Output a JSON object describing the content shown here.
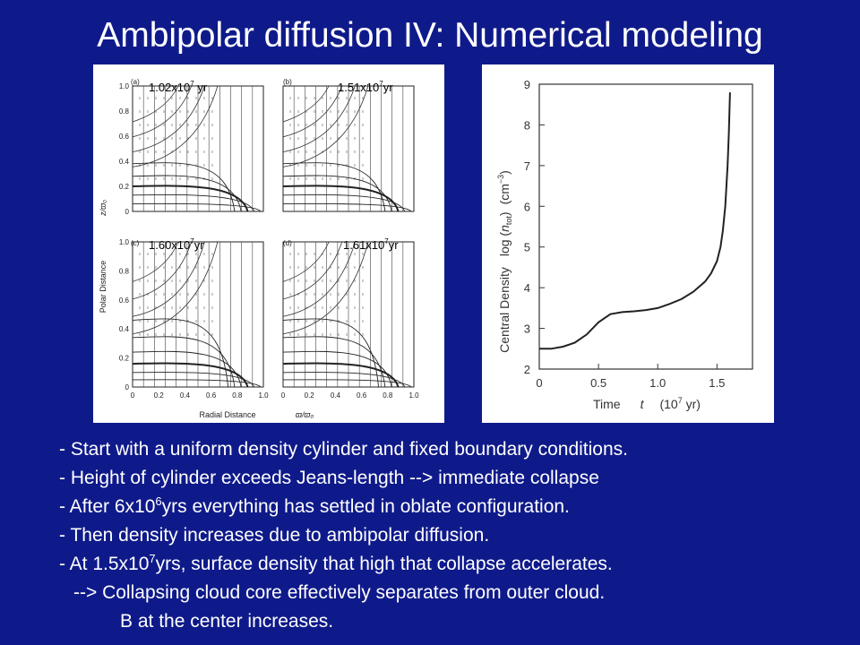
{
  "slide": {
    "title": "Ambipolar diffusion IV: Numerical modeling"
  },
  "left_figure": {
    "ylabel_main": "Polar Distance",
    "ylabel_unit": "z/ϖ₀",
    "xlabel_main": "Radial Distance",
    "xlabel_unit": "ϖ/ϖ₀",
    "x_ticks": [
      "0",
      "0.2",
      "0.4",
      "0.6",
      "0.8",
      "1.0"
    ],
    "y_ticks": [
      "0",
      "0.2",
      "0.4",
      "0.6",
      "0.8",
      "1.0"
    ],
    "panels": [
      {
        "letter": "(a)",
        "time_mantissa": "1.02x10",
        "time_exp": "7",
        "time_unit": " yr"
      },
      {
        "letter": "(b)",
        "time_mantissa": "1.51x10",
        "time_exp": "7",
        "time_unit": "yr"
      },
      {
        "letter": "(c)",
        "time_mantissa": "1.60x10",
        "time_exp": "7",
        "time_unit": "yr"
      },
      {
        "letter": "(d)",
        "time_mantissa": "1.61x10",
        "time_exp": "7",
        "time_unit": "yr"
      }
    ]
  },
  "chart_data": {
    "type": "line",
    "xlabel": "Time   t   (10⁷ yr)",
    "ylabel": "Central Density   log (n_tot)  (cm⁻³)",
    "xlim": [
      0,
      1.8
    ],
    "ylim": [
      2,
      9
    ],
    "x_ticks": [
      "0",
      "0.5",
      "1.0",
      "1.5"
    ],
    "x_tick_values": [
      0,
      0.5,
      1.0,
      1.5
    ],
    "y_ticks": [
      "2",
      "3",
      "4",
      "5",
      "6",
      "7",
      "8",
      "9"
    ],
    "y_tick_values": [
      2,
      3,
      4,
      5,
      6,
      7,
      8,
      9
    ],
    "series": [
      {
        "x": [
          0,
          0.1,
          0.2,
          0.3,
          0.4,
          0.5,
          0.6,
          0.7,
          0.8,
          0.9,
          1.0,
          1.1,
          1.2,
          1.3,
          1.4,
          1.45,
          1.5,
          1.53,
          1.55,
          1.57,
          1.59,
          1.6,
          1.61
        ],
        "y": [
          2.5,
          2.5,
          2.55,
          2.65,
          2.85,
          3.15,
          3.35,
          3.4,
          3.42,
          3.45,
          3.5,
          3.6,
          3.72,
          3.9,
          4.15,
          4.35,
          4.65,
          5.0,
          5.4,
          6.0,
          7.0,
          7.8,
          8.8
        ]
      }
    ]
  },
  "bullets": [
    {
      "t1": "- Start with a uniform density cylinder and fixed boundary conditions."
    },
    {
      "t1": "- Height of cylinder exceeds Jeans-length --> immediate collapse"
    },
    {
      "t1": "- After 6x10",
      "sup": "6",
      "t2": "yrs everything has settled in oblate configuration."
    },
    {
      "t1": "- Then density increases due to ambipolar diffusion."
    },
    {
      "t1": "- At 1.5x10",
      "sup": "7",
      "t2": "yrs, surface density that high that collapse accelerates."
    },
    {
      "t1": "--> Collapsing cloud core effectively separates from outer cloud."
    },
    {
      "t1": "B at the center increases."
    }
  ]
}
